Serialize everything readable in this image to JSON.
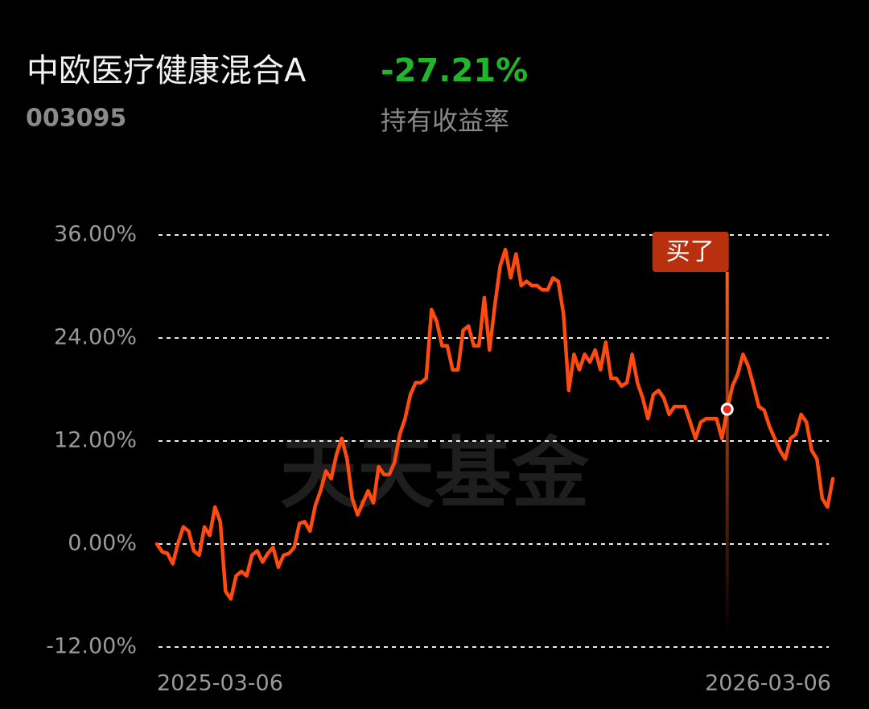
{
  "chart_data": {
    "type": "line",
    "title": "中欧医疗健康混合A",
    "return_value": "-27.21%",
    "code": "003095",
    "return_label": "持有收益率",
    "watermark": "天天基金",
    "color": "#ff4b0f",
    "grid": true,
    "ylim": [
      -12,
      36
    ],
    "yticks": [
      {
        "value": 36,
        "label": "36.00%"
      },
      {
        "value": 24,
        "label": "24.00%"
      },
      {
        "value": 12,
        "label": "12.00%"
      },
      {
        "value": 0,
        "label": "0.00%"
      },
      {
        "value": -12,
        "label": "-12.00%"
      }
    ],
    "annotation": {
      "text": "买了",
      "value": 15.7
    },
    "categories": [
      "2025-03-06",
      null,
      null,
      null,
      null,
      null,
      null,
      null,
      null,
      null,
      null,
      null,
      null,
      null,
      null,
      null,
      null,
      null,
      null,
      null,
      null,
      null,
      null,
      null,
      null,
      null,
      null,
      null,
      null,
      null,
      null,
      null,
      null,
      null,
      null,
      null,
      null,
      null,
      null,
      null,
      null,
      null,
      null,
      null,
      null,
      null,
      null,
      null,
      null,
      null,
      null,
      null,
      null,
      null,
      null,
      null,
      null,
      null,
      null,
      null,
      null,
      null,
      null,
      null,
      null,
      null,
      null,
      null,
      null,
      null,
      null,
      null,
      null,
      null,
      null,
      null,
      null,
      null,
      null,
      null,
      null,
      null,
      null,
      null,
      null,
      null,
      null,
      null,
      null,
      null,
      null,
      null,
      null,
      null,
      null,
      null,
      null,
      null,
      null,
      null,
      null,
      null,
      null,
      null,
      null,
      null,
      null,
      null,
      null,
      null,
      null,
      null,
      null,
      null,
      null,
      null,
      null,
      null,
      null,
      null,
      null,
      null,
      null,
      null,
      null,
      null,
      null,
      null,
      "2026-03-06"
    ],
    "values": [
      0.0,
      -0.9,
      -1.1,
      -2.3,
      0.1,
      2.0,
      1.5,
      -0.8,
      -1.3,
      2.0,
      1.0,
      4.3,
      2.6,
      -5.5,
      -6.4,
      -3.7,
      -3.2,
      -3.7,
      -1.3,
      -0.8,
      -2.1,
      -1.1,
      -0.4,
      -2.7,
      -1.3,
      -1.1,
      -0.4,
      2.4,
      2.6,
      1.5,
      4.5,
      6.2,
      8.5,
      7.6,
      10.4,
      12.3,
      9.9,
      5.3,
      3.4,
      4.8,
      6.2,
      4.8,
      9.0,
      8.1,
      8.1,
      9.5,
      12.8,
      14.6,
      17.4,
      18.8,
      18.8,
      19.3,
      27.3,
      25.9,
      23.1,
      23.1,
      20.3,
      20.3,
      24.9,
      25.4,
      23.1,
      23.1,
      28.7,
      22.6,
      27.8,
      32.4,
      34.3,
      31.0,
      33.8,
      30.1,
      30.6,
      30.1,
      30.1,
      29.6,
      29.6,
      31.0,
      30.6,
      26.8,
      17.9,
      22.1,
      20.3,
      22.1,
      21.2,
      22.6,
      20.3,
      23.5,
      19.3,
      19.3,
      18.4,
      18.8,
      22.1,
      18.8,
      17.0,
      14.6,
      17.4,
      17.9,
      17.0,
      15.1,
      16.0,
      16.0,
      16.0,
      14.2,
      12.3,
      14.2,
      14.6,
      14.6,
      14.6,
      12.3,
      15.7,
      18.4,
      19.8,
      22.1,
      20.7,
      18.4,
      16.0,
      15.6,
      13.7,
      12.3,
      10.9,
      9.9,
      12.3,
      12.8,
      15.1,
      14.2,
      10.9,
      9.9,
      5.3,
      4.3,
      7.6
    ]
  }
}
